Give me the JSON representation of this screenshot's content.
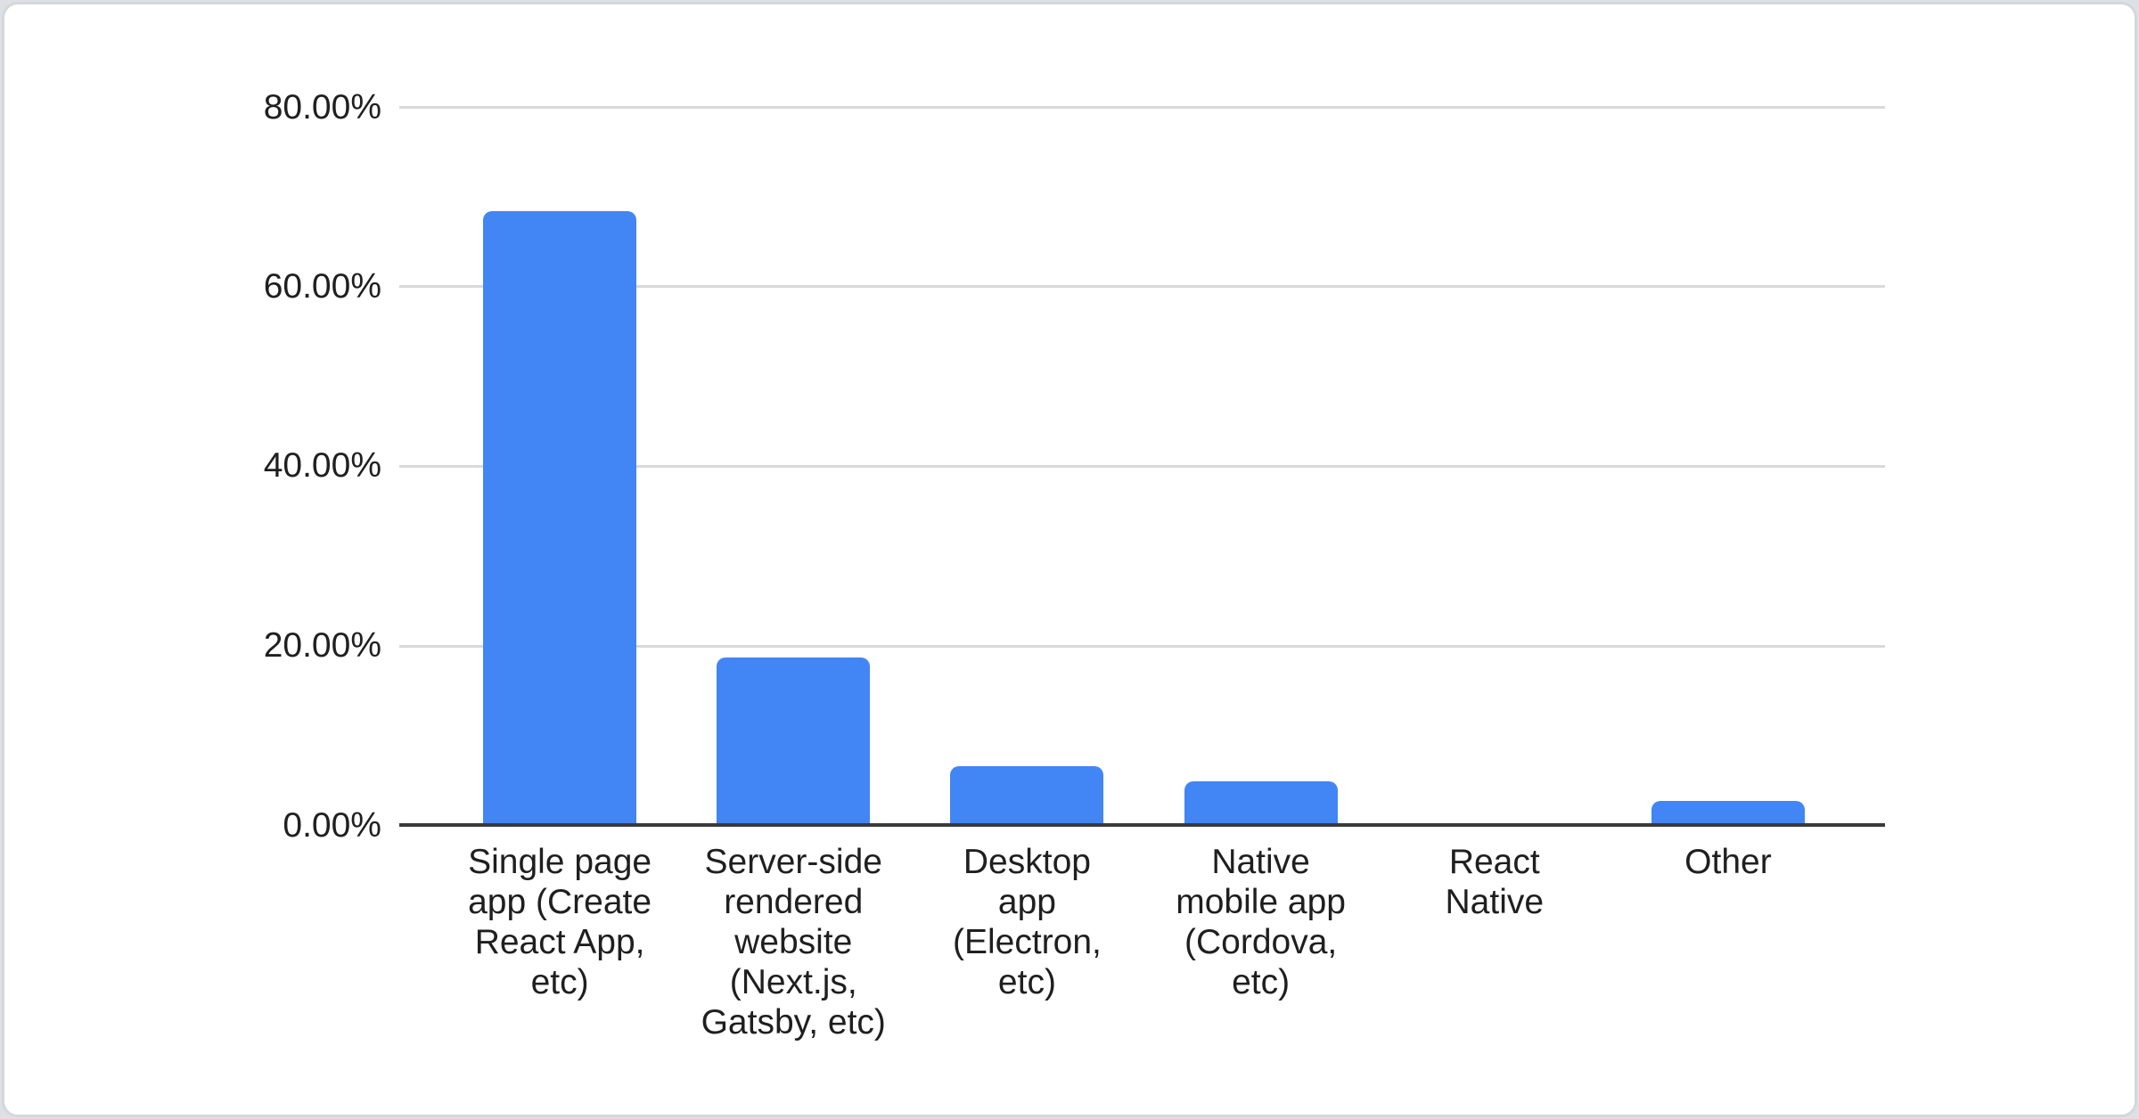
{
  "chart_data": {
    "type": "bar",
    "title": "",
    "categories": [
      "Single page app (Create React App, etc)",
      "Server-side rendered website (Next.js, Gatsby, etc)",
      "Desktop app (Electron, etc)",
      "Native mobile app (Cordova, etc)",
      "React Native",
      "Other"
    ],
    "categories_display": [
      "Single page\napp (Create\nReact App,\netc)",
      "Server-side\nrendered\nwebsite\n(Next.js,\nGatsby, etc)",
      "Desktop\napp\n(Electron,\netc)",
      "Native\nmobile app\n(Cordova,\netc)",
      "React\nNative",
      "Other"
    ],
    "values": [
      68.4,
      18.5,
      6.4,
      4.7,
      0,
      2.5
    ],
    "unit": "%",
    "y_ticks": [
      "80.00%",
      "60.00%",
      "40.00%",
      "20.00%",
      "0.00%"
    ],
    "ylim": [
      0,
      80
    ],
    "grid": true,
    "legend": "none",
    "bar_color": "#4285f4",
    "axis_color": "#3a3a3a",
    "gridline_color": "#d9d9d9",
    "label_color": "#1f1f1f"
  }
}
